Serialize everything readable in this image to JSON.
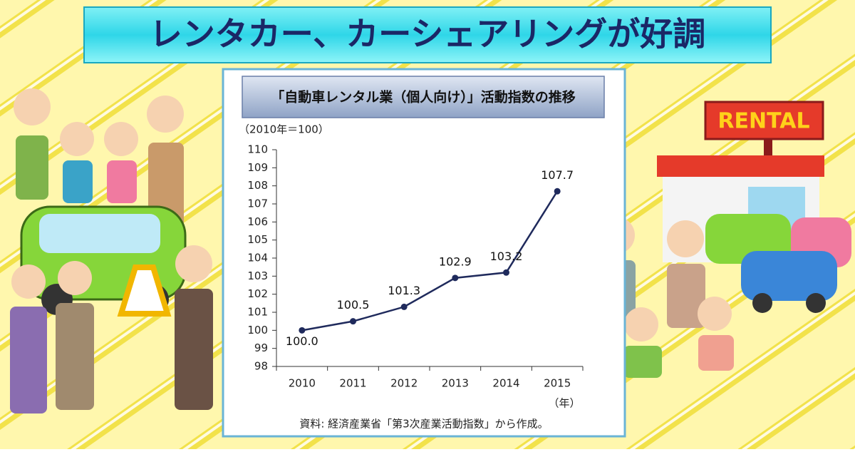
{
  "banner": "レンタカー、カーシェアリングが好調",
  "sign": "RENTAL",
  "chart_data": {
    "type": "line",
    "title": "「自動車レンタル業（個人向け）」活動指数の推移",
    "subtitle": "（2010年＝100）",
    "x_unit": "（年）",
    "source": "資料: 経済産業省「第3次産業活動指数」から作成。",
    "categories": [
      "2010",
      "2011",
      "2012",
      "2013",
      "2014",
      "2015"
    ],
    "values": [
      100,
      100.5,
      101.3,
      102.9,
      103.2,
      107.7
    ],
    "value_labels": [
      "100.0",
      "100.5",
      "101.3",
      "102.9",
      "103.2",
      "107.7"
    ],
    "color": "#1f2a5c",
    "ylim": [
      98,
      110
    ],
    "yticks": [
      98,
      99,
      100,
      101,
      102,
      103,
      104,
      105,
      106,
      107,
      108,
      109,
      110
    ]
  }
}
